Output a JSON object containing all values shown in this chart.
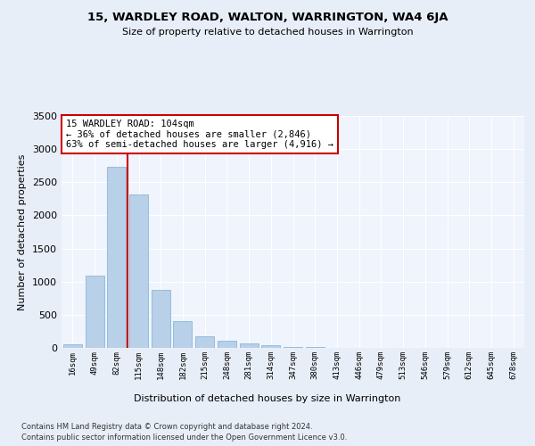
{
  "title": "15, WARDLEY ROAD, WALTON, WARRINGTON, WA4 6JA",
  "subtitle": "Size of property relative to detached houses in Warrington",
  "xlabel": "Distribution of detached houses by size in Warrington",
  "ylabel": "Number of detached properties",
  "bar_color": "#b8d0e8",
  "bar_edge_color": "#7aafd4",
  "background_color": "#e8eef8",
  "plot_bg_color": "#f0f4fc",
  "grid_color": "#ffffff",
  "annotation_box_color": "#cc0000",
  "vline_color": "#cc0000",
  "categories": [
    "16sqm",
    "49sqm",
    "82sqm",
    "115sqm",
    "148sqm",
    "182sqm",
    "215sqm",
    "248sqm",
    "281sqm",
    "314sqm",
    "347sqm",
    "380sqm",
    "413sqm",
    "446sqm",
    "479sqm",
    "513sqm",
    "546sqm",
    "579sqm",
    "612sqm",
    "645sqm",
    "678sqm"
  ],
  "values": [
    50,
    1090,
    2730,
    2310,
    880,
    410,
    175,
    110,
    65,
    35,
    15,
    8,
    5,
    3,
    2,
    1,
    1,
    0,
    0,
    0,
    0
  ],
  "ylim": [
    0,
    3500
  ],
  "yticks": [
    0,
    500,
    1000,
    1500,
    2000,
    2500,
    3000,
    3500
  ],
  "vline_pos": 2.5,
  "annotation_text": "15 WARDLEY ROAD: 104sqm\n← 36% of detached houses are smaller (2,846)\n63% of semi-detached houses are larger (4,916) →",
  "footer_line1": "Contains HM Land Registry data © Crown copyright and database right 2024.",
  "footer_line2": "Contains public sector information licensed under the Open Government Licence v3.0."
}
